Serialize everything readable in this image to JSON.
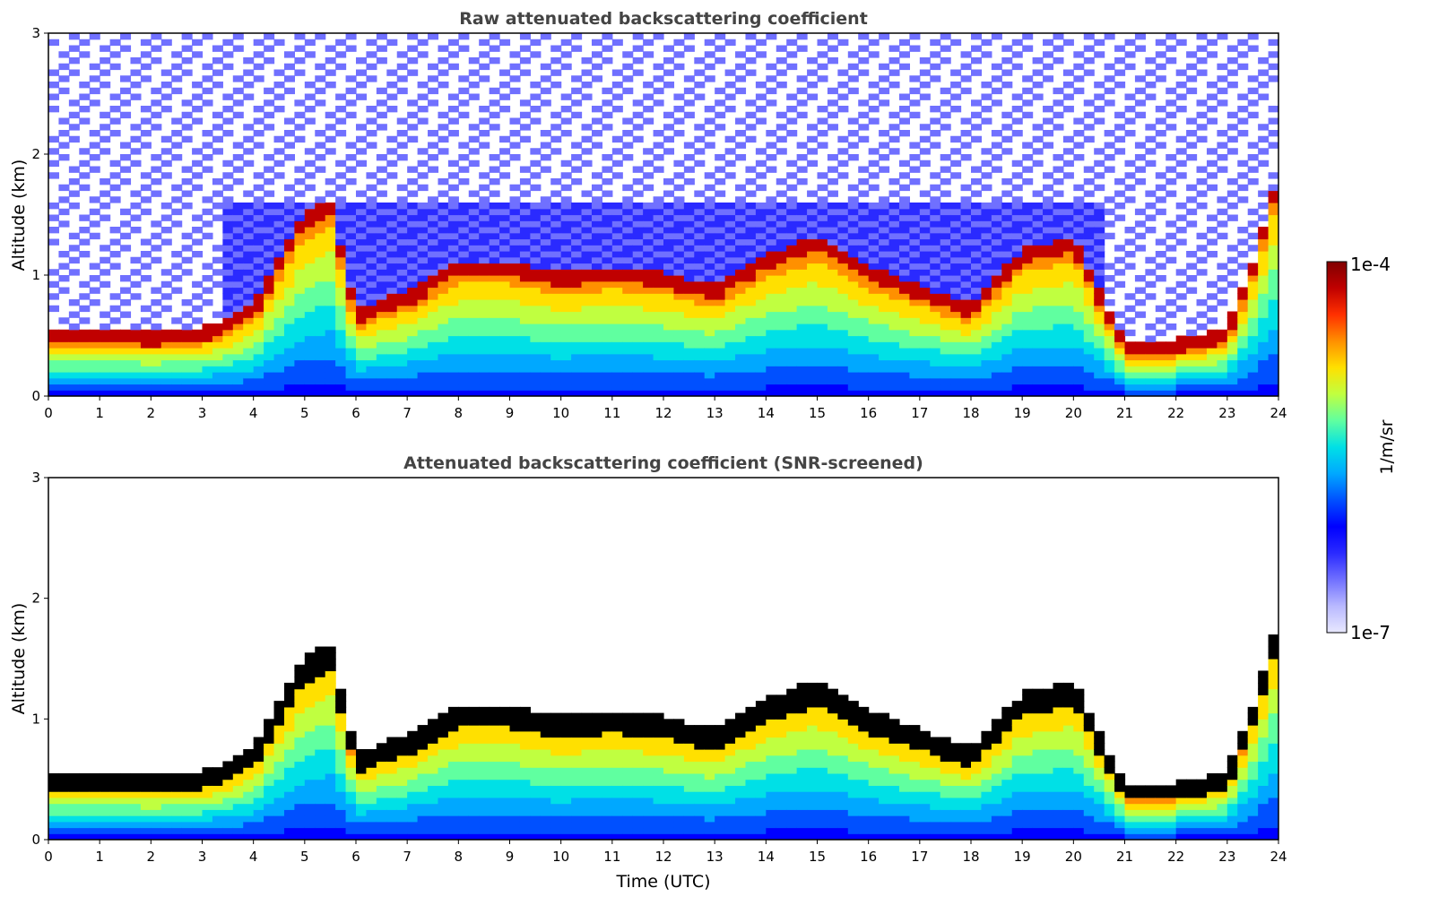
{
  "figure": {
    "colorbar": {
      "max_label": "1e-4",
      "min_label": "1e-7",
      "unit_label": "1/m/sr",
      "scale": "log",
      "range": [
        1e-07,
        0.0001
      ],
      "colors": [
        "#e8e8ff",
        "#b9b9ff",
        "#7070ff",
        "#2a2aff",
        "#0000ff",
        "#0050ff",
        "#00a8ff",
        "#00e0e6",
        "#60ffa0",
        "#c0ff40",
        "#ffe000",
        "#ff9000",
        "#ff3000",
        "#c00000",
        "#800000"
      ]
    }
  },
  "chart_data": [
    {
      "type": "heatmap",
      "title": "Raw attenuated backscattering coefficient",
      "xlabel": "",
      "ylabel": "Altitude (km)",
      "xlim": [
        0,
        24
      ],
      "ylim": [
        0,
        3
      ],
      "xticks": [
        "0",
        "1",
        "2",
        "3",
        "4",
        "5",
        "6",
        "7",
        "8",
        "9",
        "10",
        "11",
        "12",
        "13",
        "14",
        "15",
        "16",
        "17",
        "18",
        "19",
        "20",
        "21",
        "22",
        "23",
        "24"
      ],
      "yticks": [
        "0",
        "1",
        "2",
        "3"
      ],
      "cloud_layer_top_km": {
        "x": [
          0,
          1,
          2,
          3,
          3.6,
          4,
          5,
          5.5,
          6,
          7,
          8,
          9,
          10,
          11,
          12,
          13,
          14,
          15,
          16,
          17,
          18,
          19,
          20,
          21,
          22,
          23,
          23.5,
          23.9
        ],
        "y": [
          0.45,
          0.45,
          0.42,
          0.45,
          0.55,
          0.65,
          1.4,
          1.5,
          0.6,
          0.75,
          1.0,
          1.0,
          0.9,
          0.95,
          0.9,
          0.8,
          1.05,
          1.2,
          0.95,
          0.8,
          0.65,
          1.1,
          1.2,
          0.35,
          0.35,
          0.45,
          1.0,
          1.6
        ]
      }
    },
    {
      "type": "heatmap",
      "title": "Attenuated backscattering coefficient (SNR-screened)",
      "xlabel": "Time (UTC)",
      "ylabel": "Altitude (km)",
      "xlim": [
        0,
        24
      ],
      "ylim": [
        0,
        3
      ],
      "xticks": [
        "0",
        "1",
        "2",
        "3",
        "4",
        "5",
        "6",
        "7",
        "8",
        "9",
        "10",
        "11",
        "12",
        "13",
        "14",
        "15",
        "16",
        "17",
        "18",
        "19",
        "20",
        "21",
        "22",
        "23",
        "24"
      ],
      "yticks": [
        "0",
        "1",
        "2",
        "3"
      ],
      "cloud_layer_top_km": {
        "x": [
          0,
          1,
          2,
          3,
          3.6,
          4,
          5,
          5.5,
          6,
          7,
          8,
          9,
          10,
          11,
          12,
          13,
          14,
          15,
          16,
          17,
          18,
          19,
          20,
          21,
          22,
          23,
          23.5,
          23.9
        ],
        "y": [
          0.45,
          0.45,
          0.42,
          0.45,
          0.55,
          0.65,
          1.4,
          1.5,
          0.6,
          0.75,
          1.0,
          1.0,
          0.9,
          0.95,
          0.9,
          0.8,
          1.05,
          1.2,
          0.95,
          0.8,
          0.65,
          1.1,
          1.2,
          0.35,
          0.35,
          0.45,
          1.0,
          1.6
        ]
      }
    }
  ]
}
